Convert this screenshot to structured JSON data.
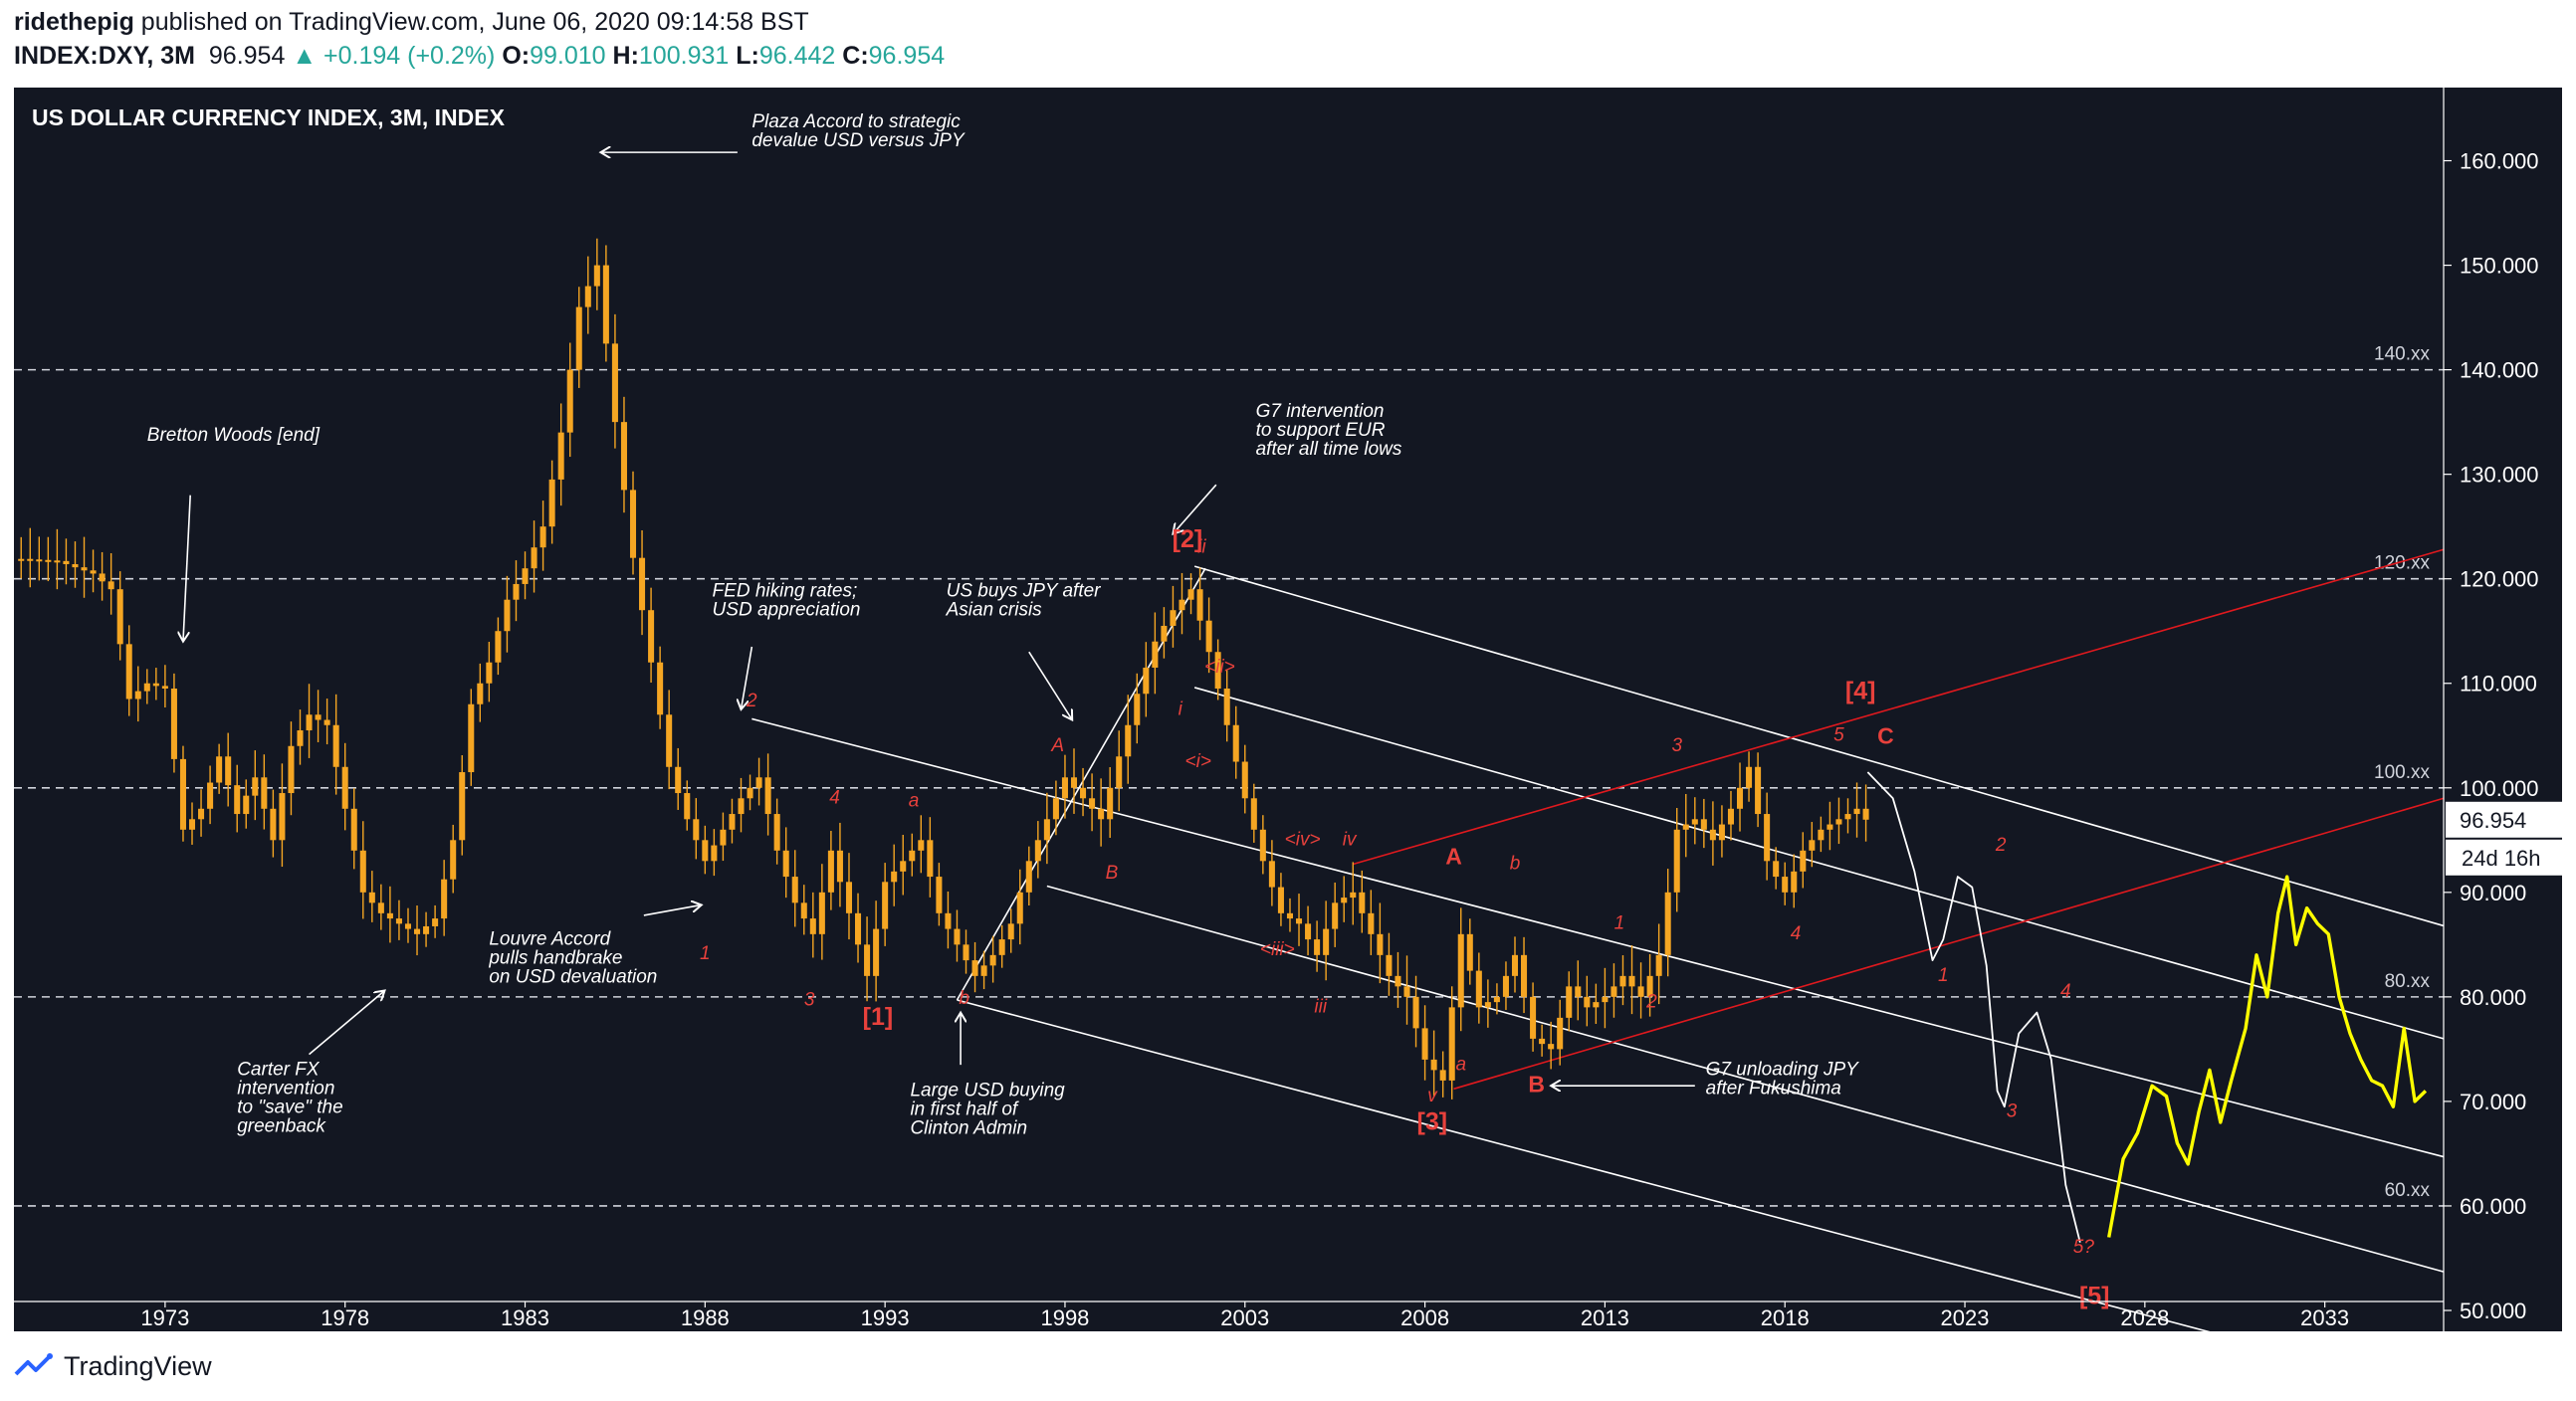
{
  "header": {
    "author": "ridethepig",
    "published_text": "published on TradingView.com, June 06, 2020 09:14:58 BST",
    "symbol": "INDEX:DXY, 3M",
    "last": "96.954",
    "change": "+0.194 (+0.2%)",
    "o_label": "O:",
    "o": "99.010",
    "h_label": "H:",
    "h": "100.931",
    "l_label": "L:",
    "l": "96.442",
    "c_label": "C:",
    "c": "96.954"
  },
  "footer": {
    "brand": "TradingView"
  },
  "colors": {
    "background": "#131722",
    "candle": "#f5a623",
    "projection": "#ffff00",
    "wave_label": "#e8413c",
    "channel": "#ffffff",
    "trendline": "#e0191e",
    "annotation": "#ffffff"
  },
  "chart_data": {
    "type": "candlestick",
    "title": "US DOLLAR CURRENCY INDEX, 3M, INDEX",
    "x_ticks": [
      "1973",
      "1978",
      "1983",
      "1988",
      "1993",
      "1998",
      "2003",
      "2008",
      "2013",
      "2018",
      "2023",
      "2028",
      "2033"
    ],
    "y_ticks": [
      "160.000",
      "150.000",
      "140.000",
      "130.000",
      "120.000",
      "110.000",
      "100.000",
      "90.000",
      "80.000",
      "70.000",
      "60.000",
      "50.000"
    ],
    "ylim": [
      48,
      167
    ],
    "xlim": [
      1968.8,
      2036.3
    ],
    "last_price": "96.954",
    "countdown": "24d 16h",
    "level_lines": [
      {
        "value": 140,
        "label": "140.xx"
      },
      {
        "value": 120,
        "label": "120.xx"
      },
      {
        "value": 100,
        "label": "100.xx"
      },
      {
        "value": 80,
        "label": "80.xx"
      },
      {
        "value": 60,
        "label": "60.xx"
      }
    ],
    "price_path": [
      [
        1969.0,
        121.9
      ],
      [
        1970.0,
        121.7
      ],
      [
        1971.0,
        120.5
      ],
      [
        1971.5,
        119.0
      ],
      [
        1972.0,
        108.5
      ],
      [
        1972.5,
        110.0
      ],
      [
        1973.0,
        109.5
      ],
      [
        1973.5,
        96.0
      ],
      [
        1974.0,
        98.0
      ],
      [
        1974.5,
        103.0
      ],
      [
        1975.0,
        97.5
      ],
      [
        1975.5,
        101.0
      ],
      [
        1976.0,
        95.0
      ],
      [
        1976.5,
        104.0
      ],
      [
        1977.0,
        107.0
      ],
      [
        1977.5,
        106.0
      ],
      [
        1978.0,
        98.0
      ],
      [
        1978.5,
        90.0
      ],
      [
        1979.0,
        88.0
      ],
      [
        1979.5,
        87.0
      ],
      [
        1980.0,
        86.0
      ],
      [
        1980.5,
        87.5
      ],
      [
        1981.0,
        95.0
      ],
      [
        1981.5,
        108.0
      ],
      [
        1982.0,
        112.0
      ],
      [
        1982.5,
        118.0
      ],
      [
        1983.0,
        121.0
      ],
      [
        1983.5,
        125.0
      ],
      [
        1984.0,
        134.0
      ],
      [
        1984.5,
        146.0
      ],
      [
        1985.0,
        150.0
      ],
      [
        1985.5,
        135.0
      ],
      [
        1986.0,
        122.0
      ],
      [
        1986.5,
        112.0
      ],
      [
        1987.0,
        102.0
      ],
      [
        1987.5,
        97.0
      ],
      [
        1988.0,
        93.0
      ],
      [
        1988.5,
        96.0
      ],
      [
        1989.0,
        99.0
      ],
      [
        1989.5,
        101.0
      ],
      [
        1990.0,
        94.0
      ],
      [
        1990.5,
        89.0
      ],
      [
        1991.0,
        86.0
      ],
      [
        1991.5,
        94.0
      ],
      [
        1992.0,
        88.0
      ],
      [
        1992.5,
        82.0
      ],
      [
        1993.0,
        91.0
      ],
      [
        1993.5,
        93.0
      ],
      [
        1994.0,
        95.0
      ],
      [
        1994.5,
        88.0
      ],
      [
        1995.0,
        85.0
      ],
      [
        1995.5,
        82.0
      ],
      [
        1996.0,
        84.0
      ],
      [
        1996.5,
        87.0
      ],
      [
        1997.0,
        93.0
      ],
      [
        1997.5,
        97.0
      ],
      [
        1998.0,
        101.0
      ],
      [
        1998.5,
        99.0
      ],
      [
        1999.0,
        97.0
      ],
      [
        1999.5,
        103.0
      ],
      [
        2000.0,
        109.0
      ],
      [
        2000.5,
        114.0
      ],
      [
        2001.0,
        117.0
      ],
      [
        2001.5,
        119.0
      ],
      [
        2002.0,
        113.0
      ],
      [
        2002.5,
        106.0
      ],
      [
        2003.0,
        99.0
      ],
      [
        2003.5,
        93.0
      ],
      [
        2004.0,
        88.0
      ],
      [
        2004.5,
        87.0
      ],
      [
        2005.0,
        84.0
      ],
      [
        2005.5,
        89.0
      ],
      [
        2006.0,
        90.0
      ],
      [
        2006.5,
        86.0
      ],
      [
        2007.0,
        82.0
      ],
      [
        2007.5,
        80.0
      ],
      [
        2008.0,
        74.0
      ],
      [
        2008.5,
        72.0
      ],
      [
        2009.0,
        86.0
      ],
      [
        2009.5,
        79.0
      ],
      [
        2010.0,
        80.0
      ],
      [
        2010.5,
        84.0
      ],
      [
        2011.0,
        76.0
      ],
      [
        2011.5,
        75.0
      ],
      [
        2012.0,
        81.0
      ],
      [
        2012.5,
        79.0
      ],
      [
        2013.0,
        80.0
      ],
      [
        2013.5,
        82.0
      ],
      [
        2014.0,
        80.0
      ],
      [
        2014.5,
        84.0
      ],
      [
        2015.0,
        96.0
      ],
      [
        2015.5,
        97.0
      ],
      [
        2016.0,
        95.0
      ],
      [
        2016.5,
        98.0
      ],
      [
        2017.0,
        102.0
      ],
      [
        2017.5,
        93.0
      ],
      [
        2018.0,
        90.0
      ],
      [
        2018.5,
        94.0
      ],
      [
        2019.0,
        96.0
      ],
      [
        2019.5,
        97.0
      ],
      [
        2020.0,
        98.0
      ],
      [
        2020.25,
        96.954
      ]
    ],
    "projection_path": [
      [
        2027.0,
        57.0
      ],
      [
        2027.4,
        64.5
      ],
      [
        2027.8,
        67.0
      ],
      [
        2028.2,
        71.5
      ],
      [
        2028.6,
        70.5
      ],
      [
        2028.9,
        66.0
      ],
      [
        2029.2,
        64.0
      ],
      [
        2029.5,
        69.0
      ],
      [
        2029.8,
        73.0
      ],
      [
        2030.1,
        68.0
      ],
      [
        2030.4,
        72.0
      ],
      [
        2030.8,
        77.0
      ],
      [
        2031.1,
        84.0
      ],
      [
        2031.4,
        80.0
      ],
      [
        2031.7,
        88.0
      ],
      [
        2031.95,
        91.5
      ],
      [
        2032.2,
        85.0
      ],
      [
        2032.5,
        88.5
      ],
      [
        2032.8,
        87.0
      ],
      [
        2033.1,
        86.0
      ],
      [
        2033.4,
        80.0
      ],
      [
        2033.7,
        76.5
      ],
      [
        2034.0,
        74.0
      ],
      [
        2034.3,
        72.0
      ],
      [
        2034.6,
        71.5
      ],
      [
        2034.9,
        69.5
      ],
      [
        2035.2,
        77.0
      ],
      [
        2035.5,
        70.0
      ],
      [
        2035.8,
        71.0
      ]
    ],
    "wave_labels": [
      {
        "text": "[1]",
        "x": 1992.8,
        "y": 77.3,
        "size": "big"
      },
      {
        "text": "[2]",
        "x": 2001.4,
        "y": 123.0,
        "size": "big"
      },
      {
        "text": "[3]",
        "x": 2008.2,
        "y": 67.3,
        "size": "big"
      },
      {
        "text": "[4]",
        "x": 2020.1,
        "y": 108.5,
        "size": "big"
      },
      {
        "text": "[5]",
        "x": 2026.6,
        "y": 50.6,
        "size": "big"
      },
      {
        "text": "A",
        "x": 2008.8,
        "y": 92.7,
        "size": "bold"
      },
      {
        "text": "B",
        "x": 2011.1,
        "y": 70.9,
        "size": "bold"
      },
      {
        "text": "C",
        "x": 2020.8,
        "y": 104.2,
        "size": "bold"
      },
      {
        "text": "1",
        "x": 1988.0,
        "y": 83.6,
        "size": "small"
      },
      {
        "text": "2",
        "x": 1989.3,
        "y": 107.8,
        "size": "small"
      },
      {
        "text": "3",
        "x": 1990.9,
        "y": 79.2,
        "size": "small"
      },
      {
        "text": "4",
        "x": 1991.6,
        "y": 98.5,
        "size": "small"
      },
      {
        "text": "a",
        "x": 1993.8,
        "y": 98.2,
        "size": "small"
      },
      {
        "text": "b",
        "x": 1995.2,
        "y": 79.3,
        "size": "small"
      },
      {
        "text": "A",
        "x": 1997.8,
        "y": 103.5,
        "size": "small"
      },
      {
        "text": "B",
        "x": 1999.3,
        "y": 91.3,
        "size": "small"
      },
      {
        "text": "ii",
        "x": 2001.8,
        "y": 122.5,
        "size": "small"
      },
      {
        "text": "i",
        "x": 2001.2,
        "y": 107.0,
        "size": "small"
      },
      {
        "text": "<ii>",
        "x": 2002.3,
        "y": 111.0,
        "size": "small"
      },
      {
        "text": "<i>",
        "x": 2001.7,
        "y": 102.0,
        "size": "small"
      },
      {
        "text": "<iv>",
        "x": 2004.6,
        "y": 94.5,
        "size": "small"
      },
      {
        "text": "iv",
        "x": 2005.9,
        "y": 94.5,
        "size": "small"
      },
      {
        "text": "<iii>",
        "x": 2003.9,
        "y": 84.0,
        "size": "small"
      },
      {
        "text": "iii",
        "x": 2005.1,
        "y": 78.5,
        "size": "small"
      },
      {
        "text": "v",
        "x": 2008.2,
        "y": 70.0,
        "size": "small"
      },
      {
        "text": "a",
        "x": 2009.0,
        "y": 73.0,
        "size": "small"
      },
      {
        "text": "b",
        "x": 2010.5,
        "y": 92.2,
        "size": "small"
      },
      {
        "text": "1",
        "x": 2013.4,
        "y": 86.5,
        "size": "small"
      },
      {
        "text": "2",
        "x": 2014.3,
        "y": 79.0,
        "size": "small"
      },
      {
        "text": "3",
        "x": 2015.0,
        "y": 103.5,
        "size": "small"
      },
      {
        "text": "4",
        "x": 2018.3,
        "y": 85.5,
        "size": "small"
      },
      {
        "text": "5",
        "x": 2019.5,
        "y": 104.5,
        "size": "small"
      },
      {
        "text": "2",
        "x": 2024.0,
        "y": 94.0,
        "size": "small"
      },
      {
        "text": "1",
        "x": 2022.4,
        "y": 81.5,
        "size": "small"
      },
      {
        "text": "4",
        "x": 2025.8,
        "y": 80.0,
        "size": "small"
      },
      {
        "text": "3",
        "x": 2024.3,
        "y": 68.5,
        "size": "small"
      },
      {
        "text": "5?",
        "x": 2026.3,
        "y": 55.5,
        "size": "small"
      }
    ],
    "annotations": [
      {
        "text": [
          "Plaza Accord to strategic",
          "devalue USD versus JPY"
        ],
        "x": 1989.3,
        "y": 163.2
      },
      {
        "text": [
          "Bretton Woods [end]"
        ],
        "x": 1972.5,
        "y": 133.2
      },
      {
        "text": [
          "G7 intervention",
          "to support EUR",
          "after all time lows"
        ],
        "x": 2003.3,
        "y": 135.5
      },
      {
        "text": [
          "FED hiking rates;",
          "USD appreciation"
        ],
        "x": 1988.2,
        "y": 118.3
      },
      {
        "text": [
          "US buys JPY after",
          "Asian crisis"
        ],
        "x": 1994.7,
        "y": 118.3
      },
      {
        "text": [
          "Louvre Accord",
          "pulls handbrake",
          "on USD devaluation"
        ],
        "x": 1982.0,
        "y": 85.0
      },
      {
        "text": [
          "Carter FX",
          "intervention",
          "to \"save\" the",
          "greenback"
        ],
        "x": 1975.0,
        "y": 72.5
      },
      {
        "text": [
          "Large USD buying",
          "in first half of",
          "Clinton Admin"
        ],
        "x": 1993.7,
        "y": 70.5
      },
      {
        "text": [
          "G7 unloading JPY",
          "after Fukushima"
        ],
        "x": 2015.8,
        "y": 72.5
      }
    ]
  }
}
